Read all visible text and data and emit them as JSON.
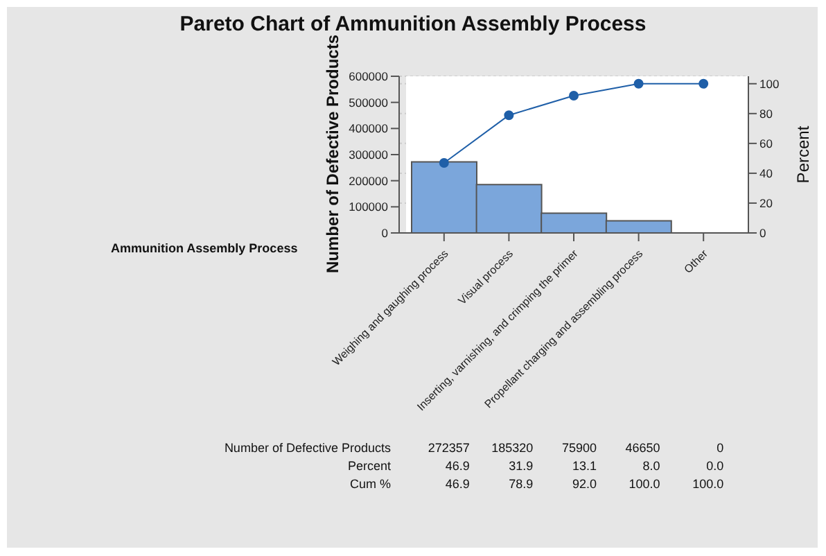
{
  "chart_data": {
    "type": "bar",
    "title": "Pareto Chart of Ammunition Assembly Process",
    "xlabel": "Ammunition Assembly Process",
    "ylabel": "Number of Defective Products",
    "y2label": "Percent",
    "categories": [
      "Weighing and gaughing process",
      "Visual process",
      "Inserting, varnishing, and crimping the primer",
      "Propellant charging and assembling process",
      "Other"
    ],
    "series": [
      {
        "color": "#7ba6db",
        "values": [
          272357,
          185320,
          75900,
          46650,
          0
        ],
        "value_labels": [
          "272357",
          "185320",
          "75900",
          "46650",
          "0"
        ]
      },
      {
        "type": "line",
        "axis": "y2",
        "color": "#1f5fa8",
        "values": [
          46.9,
          78.9,
          92.0,
          100.0,
          100.0
        ],
        "value_labels": [
          "46.9",
          "78.9",
          "92.0",
          "100.0",
          "100.0"
        ]
      }
    ],
    "ylim": [
      0,
      600000
    ],
    "yticks": [
      0,
      100000,
      200000,
      300000,
      400000,
      500000,
      600000
    ],
    "y2lim": [
      0,
      105
    ],
    "y2ticks": [
      0,
      20,
      40,
      60,
      80,
      100
    ],
    "grid": "y",
    "marker": "circle",
    "annotations": [
      "Number of Defective Products",
      "Percent",
      "Cum %",
      "46.9",
      "31.9",
      "13.1",
      "8.0",
      "0.0"
    ]
  }
}
